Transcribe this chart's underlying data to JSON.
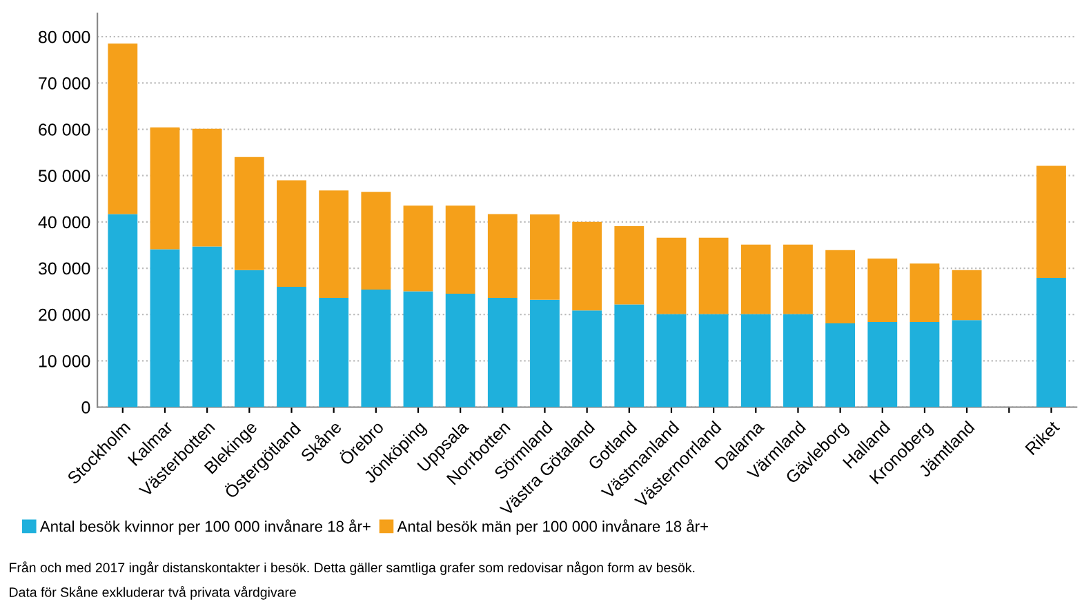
{
  "chart_data": {
    "type": "bar",
    "stacked": true,
    "categories": [
      "Stockholm",
      "Kalmar",
      "Västerbotten",
      "Blekinge",
      "Östergötland",
      "Skåne",
      "Örebro",
      "Jönköping",
      "Uppsala",
      "Norrbotten",
      "Sörmland",
      "Västra Götaland",
      "Gotland",
      "Västmanland",
      "Västernorrland",
      "Dalarna",
      "Värmland",
      "Gävleborg",
      "Halland",
      "Kronoberg",
      "Jämtland",
      null,
      "Riket"
    ],
    "series": [
      {
        "name": "Antal besök kvinnor per 100 000 invånare 18 år+",
        "color": "#1fb0dc",
        "values": [
          41700,
          34100,
          34700,
          29600,
          26000,
          23600,
          25400,
          25000,
          24500,
          23600,
          23200,
          20900,
          22200,
          20100,
          20100,
          20100,
          20100,
          18100,
          18400,
          18400,
          18800,
          null,
          27900
        ]
      },
      {
        "name": "Antal besök män per 100 000 invånare 18 år+",
        "color": "#f5a01a",
        "values": [
          36800,
          26300,
          25400,
          24400,
          23000,
          23200,
          21100,
          18500,
          19000,
          18100,
          18400,
          19100,
          16900,
          16500,
          16500,
          15000,
          15000,
          15800,
          13700,
          12600,
          10800,
          null,
          24200
        ]
      }
    ],
    "ylim": [
      0,
      85000
    ],
    "yticks": [
      {
        "value": 0,
        "label": "0"
      },
      {
        "value": 10000,
        "label": "10 000"
      },
      {
        "value": 20000,
        "label": "20 000"
      },
      {
        "value": 30000,
        "label": "30 000"
      },
      {
        "value": 40000,
        "label": "40 000"
      },
      {
        "value": 50000,
        "label": "50 000"
      },
      {
        "value": 60000,
        "label": "60 000"
      },
      {
        "value": 70000,
        "label": "70 000"
      },
      {
        "value": 80000,
        "label": "80 000"
      }
    ],
    "grid": "y",
    "legend": "bottom",
    "annotations": [
      "Från och med 2017 ingår distanskontakter i besök. Detta gäller samtliga grafer som redovisar någon form av besök.",
      "Data för Skåne exkluderar två privata vårdgivare"
    ]
  }
}
